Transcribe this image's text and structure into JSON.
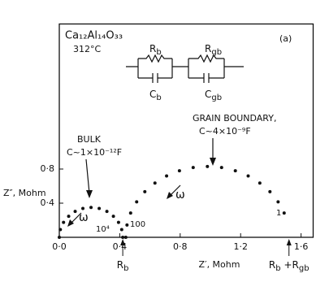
{
  "chart_data": {
    "type": "scatter",
    "formula": "Ca₁₂Al₁₄O₃₃",
    "temperature": "312°C",
    "panel": "(a)",
    "circuit": {
      "rb": [
        {
          "text": "R"
        },
        {
          "sub": "b"
        }
      ],
      "cb": [
        {
          "text": "C"
        },
        {
          "sub": "b"
        }
      ],
      "rgb": [
        {
          "text": "R"
        },
        {
          "sub": "gb"
        }
      ],
      "cgb": [
        {
          "text": "C"
        },
        {
          "sub": "gb"
        }
      ]
    },
    "x_label": "Z′, Mohm",
    "y_label": "Z″, Mohm",
    "bulk_label": "BULK",
    "bulk_capacitance": "C~1×10⁻¹²F",
    "gb_label": "GRAIN BOUNDARY,",
    "gb_capacitance": "C~4×10⁻⁹F",
    "omega": "ω",
    "frequency_labels": [
      "10⁴",
      "100",
      "1"
    ],
    "markers": [
      {
        "label": [
          {
            "text": "R"
          },
          {
            "sub": "b"
          }
        ],
        "x": 0.42
      },
      {
        "label": [
          {
            "text": "R"
          },
          {
            "sub": "b"
          },
          {
            "text": " +R"
          },
          {
            "sub": "gb"
          }
        ],
        "x": 1.52
      }
    ],
    "series": [
      {
        "color": "#111111",
        "x": [
          0,
          0.007,
          0.028,
          0.062,
          0.105,
          0.156,
          0.21,
          0.264,
          0.315,
          0.358,
          0.392,
          0.413,
          0.42
        ],
        "values": [
          0,
          0.091,
          0.175,
          0.247,
          0.303,
          0.338,
          0.35,
          0.338,
          0.303,
          0.247,
          0.175,
          0.091,
          0
        ]
      },
      {
        "color": "#111111",
        "x": [
          0.44,
          0.448,
          0.472,
          0.512,
          0.566,
          0.633,
          0.71,
          0.795,
          0.886,
          0.98,
          1.074,
          1.165,
          1.25,
          1.327,
          1.394,
          1.448,
          1.488
        ],
        "values": [
          0,
          0.144,
          0.284,
          0.415,
          0.534,
          0.636,
          0.719,
          0.78,
          0.818,
          0.83,
          0.818,
          0.78,
          0.719,
          0.636,
          0.534,
          0.415,
          0.284
        ]
      }
    ],
    "xlim": [
      0,
      1.68
    ],
    "ylim": [
      0,
      2.5
    ],
    "xticks": [
      {
        "value": 0,
        "label": "0·0"
      },
      {
        "value": 0.4,
        "label": "0·4"
      },
      {
        "value": 0.8,
        "label": "0·8"
      },
      {
        "value": 1.2,
        "label": "1·2"
      },
      {
        "value": 1.6,
        "label": "1·6"
      }
    ],
    "yticks": [
      {
        "value": 0.4,
        "label": "0·4"
      },
      {
        "value": 0.8,
        "label": "0·8"
      }
    ]
  }
}
